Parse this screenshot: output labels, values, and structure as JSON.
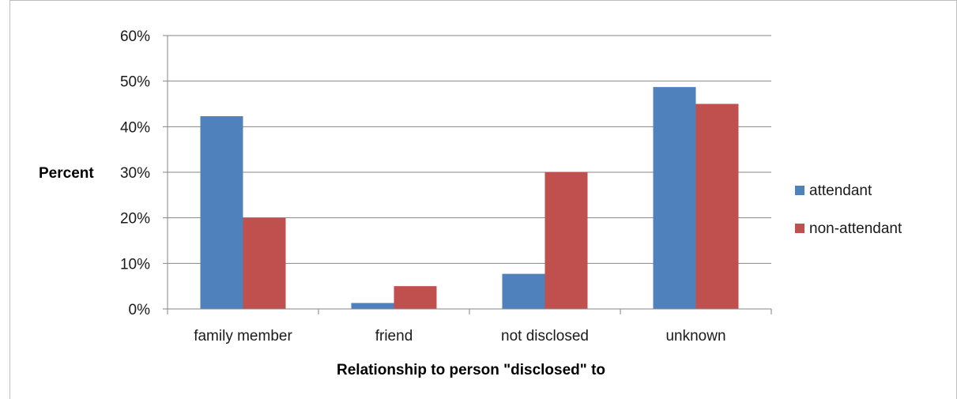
{
  "chart_data": {
    "type": "bar",
    "categories": [
      "family member",
      "friend",
      "not disclosed",
      "unknown"
    ],
    "series": [
      {
        "name": "attendant",
        "values": [
          42.3,
          1.3,
          7.7,
          48.7
        ],
        "color": "#4f81bd"
      },
      {
        "name": "non-attendant",
        "values": [
          20,
          5,
          30,
          45
        ],
        "color": "#c0504d"
      }
    ],
    "xlabel": "Relationship to person \"disclosed\" to",
    "ylabel": "Percent",
    "ylim": [
      0,
      60
    ],
    "yticks": [
      "0%",
      "10%",
      "20%",
      "30%",
      "40%",
      "50%",
      "60%"
    ],
    "grid": true,
    "legend_position": "right"
  }
}
